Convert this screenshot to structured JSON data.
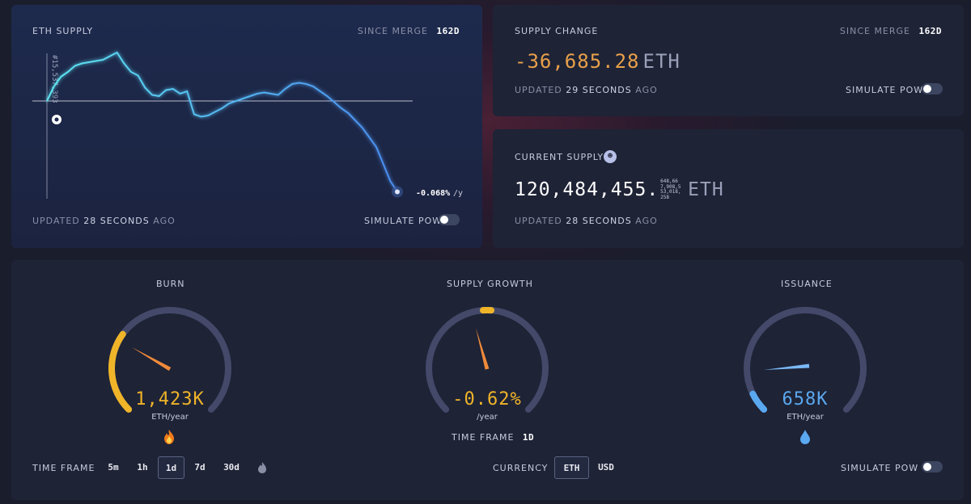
{
  "eth_supply_card": {
    "title": "ETH SUPPLY",
    "since_label": "SINCE MERGE",
    "since_value": "162d",
    "block_label": "#15,537,393",
    "rate_value": "-0.068%",
    "rate_unit": "/y",
    "updated_prefix": "UPDATED",
    "updated_value": "28 SECONDS",
    "updated_suffix": "AGO",
    "simulate_label": "SIMULATE PoW",
    "simulate_on": false
  },
  "supply_change_card": {
    "title": "SUPPLY CHANGE",
    "since_label": "SINCE MERGE",
    "since_value": "162d",
    "value": "-36,685.28",
    "unit": "ETH",
    "updated_prefix": "UPDATED",
    "updated_value": "29 SECONDS",
    "updated_suffix": "AGO",
    "simulate_label": "SIMULATE PoW",
    "simulate_on": false
  },
  "current_supply_card": {
    "title": "CURRENT SUPPLY",
    "badge_icon": "bat-face-icon",
    "value": "120,484,455.",
    "decimals": "648,667,908,553,018,258",
    "unit": "ETH",
    "updated_prefix": "UPDATED",
    "updated_value": "28 SECONDS",
    "updated_suffix": "AGO"
  },
  "gauges": {
    "burn": {
      "title": "BURN",
      "value": "1,423K",
      "unit": "ETH/year",
      "icon": "fire-icon",
      "level": 0.3,
      "color": "#f0b429"
    },
    "supply_growth": {
      "title": "SUPPLY GROWTH",
      "value": "-0.62%",
      "unit": "/year",
      "timeframe_label": "TIME FRAME",
      "timeframe_value": "1d",
      "level": 0.04,
      "color": "#f0b429"
    },
    "issuance": {
      "title": "ISSUANCE",
      "value": "658K",
      "unit": "ETH/year",
      "icon": "droplet-icon",
      "level": 0.07,
      "color": "#5aa8f0"
    }
  },
  "controls": {
    "timeframe_label": "TIME FRAME",
    "timeframes": [
      "5m",
      "1h",
      "1d",
      "7d",
      "30d"
    ],
    "timeframe_selected": "1d",
    "currency_label": "CURRENCY",
    "currencies": [
      "ETH",
      "USD"
    ],
    "currency_selected": "ETH",
    "simulate_label": "SIMULATE PoW",
    "simulate_on": false
  },
  "chart_data": {
    "type": "line",
    "title": "ETH SUPPLY",
    "baseline_label": "#15,537,393",
    "end_label": "-0.068%/y",
    "series": [
      {
        "values": [
          0,
          0.6,
          1.0,
          1.2,
          1.45,
          1.55,
          1.6,
          1.65,
          1.7,
          1.85,
          2.0,
          1.55,
          1.2,
          1.05,
          0.55,
          0.25,
          0.2,
          0.45,
          0.5,
          0.3,
          0.4,
          -0.55,
          -0.65,
          -0.6,
          -0.45,
          -0.3,
          -0.1,
          0.0,
          0.1,
          0.2,
          0.3,
          0.35,
          0.3,
          0.25,
          0.5,
          0.7,
          0.75,
          0.7,
          0.6,
          0.4,
          0.2,
          -0.05,
          -0.3,
          -0.5,
          -0.8,
          -1.1,
          -1.5,
          -1.9,
          -2.6,
          -3.3,
          -3.75
        ]
      }
    ]
  }
}
